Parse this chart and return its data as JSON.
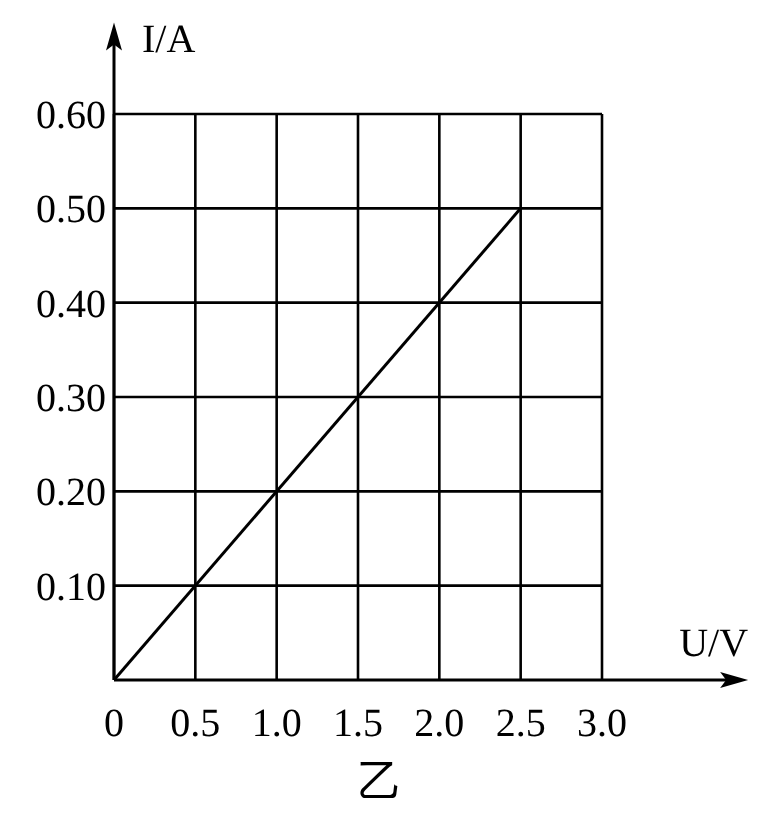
{
  "chart_data": {
    "type": "line",
    "xlabel": "U/V",
    "ylabel": "I/A",
    "annotations": [
      "乙"
    ],
    "xlim": [
      0,
      3.8
    ],
    "ylim": [
      0,
      0.68
    ],
    "xticks": [
      0,
      0.5,
      {
        "value": 1.0,
        "label": "1.0"
      },
      1.5,
      {
        "value": 2.0,
        "label": "2.0"
      },
      2.5,
      {
        "value": 3.0,
        "label": "3.0"
      }
    ],
    "yticks": [
      {
        "value": 0.1,
        "label": "0.10"
      },
      {
        "value": 0.2,
        "label": "0.20"
      },
      {
        "value": 0.3,
        "label": "0.30"
      },
      {
        "value": 0.4,
        "label": "0.40"
      },
      {
        "value": 0.5,
        "label": "0.50"
      },
      {
        "value": 0.6,
        "label": "0.60"
      }
    ],
    "grid": true,
    "series": [
      {
        "color": "#000000",
        "x": [
          0,
          2.5
        ],
        "values": [
          0,
          0.5
        ]
      }
    ]
  }
}
